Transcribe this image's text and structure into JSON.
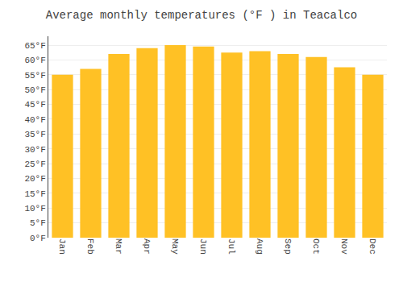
{
  "chart_data": {
    "type": "bar",
    "title": "Average monthly temperatures (°F ) in Teacalco",
    "categories": [
      "Jan",
      "Feb",
      "Mar",
      "Apr",
      "May",
      "Jun",
      "Jul",
      "Aug",
      "Sep",
      "Oct",
      "Nov",
      "Dec"
    ],
    "values": [
      55,
      57,
      62,
      64,
      65,
      64.5,
      62.5,
      63,
      62,
      61,
      57.5,
      55
    ],
    "color": "#FFC125",
    "ylim": [
      0,
      68
    ],
    "yticks": [
      {
        "value": 0,
        "label": "0°F"
      },
      {
        "value": 5,
        "label": "5°F"
      },
      {
        "value": 10,
        "label": "10°F"
      },
      {
        "value": 15,
        "label": "15°F"
      },
      {
        "value": 20,
        "label": "20°F"
      },
      {
        "value": 25,
        "label": "25°F"
      },
      {
        "value": 30,
        "label": "30°F"
      },
      {
        "value": 35,
        "label": "35°F"
      },
      {
        "value": 40,
        "label": "40°F"
      },
      {
        "value": 45,
        "label": "45°F"
      },
      {
        "value": 50,
        "label": "50°F"
      },
      {
        "value": 55,
        "label": "55°F"
      },
      {
        "value": 60,
        "label": "60°F"
      },
      {
        "value": 65,
        "label": "65°F"
      }
    ],
    "grid": true
  }
}
